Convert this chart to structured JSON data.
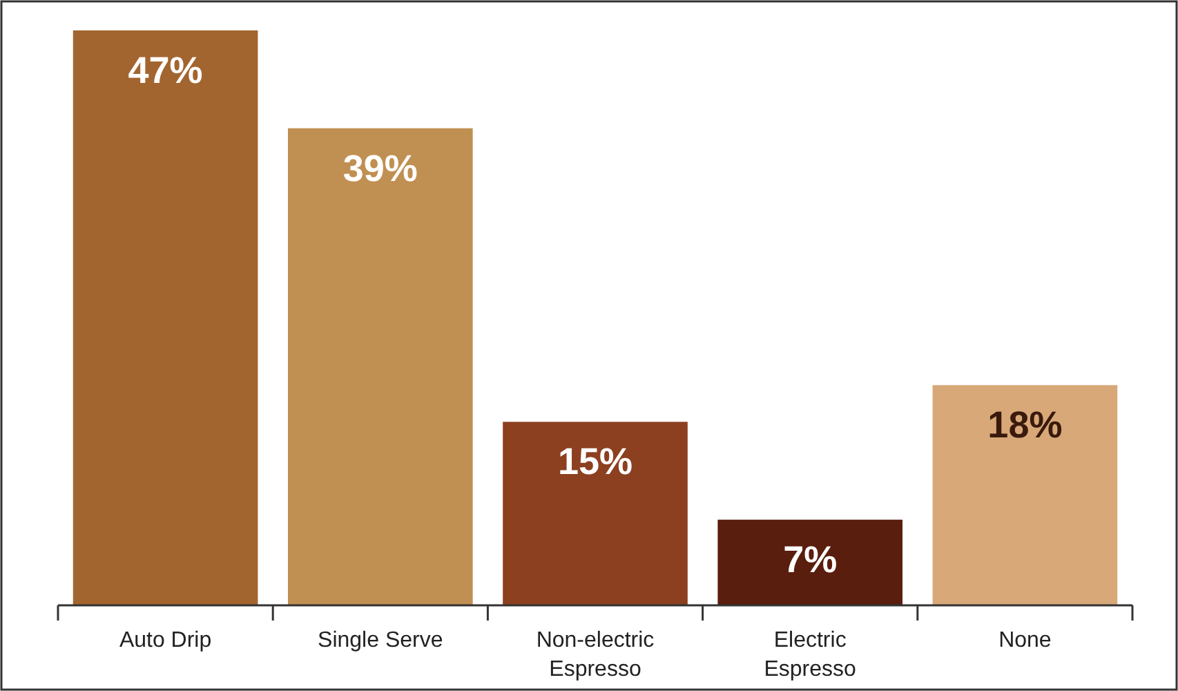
{
  "chart_data": {
    "type": "bar",
    "categories": [
      "Auto Drip",
      "Single Serve",
      "Non-electric Espresso",
      "Electric Espresso",
      "None"
    ],
    "values": [
      47,
      39,
      15,
      7,
      18
    ],
    "colors": [
      "#a3652f",
      "#c08f52",
      "#8c4020",
      "#5a1e0e",
      "#d8a878"
    ],
    "value_labels": [
      "47%",
      "39%",
      "15%",
      "7%",
      "18%"
    ]
  }
}
